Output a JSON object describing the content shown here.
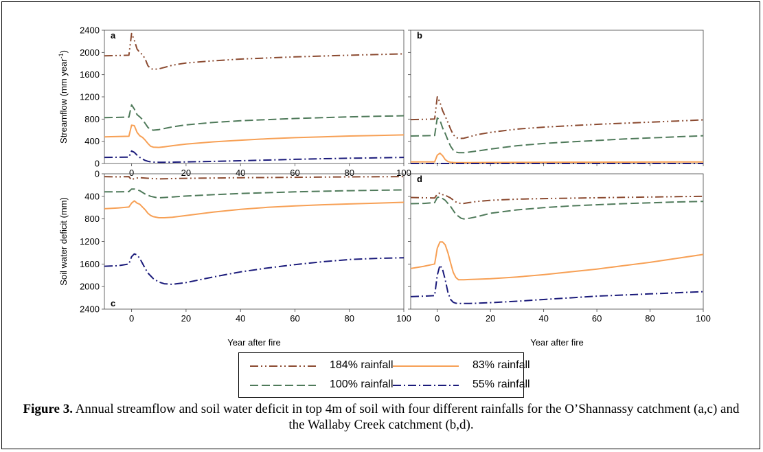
{
  "chart_data": [
    {
      "panel": "a",
      "type": "line",
      "ylabel": "Streamflow (mm year-1)",
      "ylabel_parts": [
        "Streamflow (mm year",
        "-1",
        ")"
      ],
      "xlim": [
        -10,
        100
      ],
      "ylim": [
        0,
        2400
      ],
      "y_inverted": false,
      "xticks": [
        0,
        20,
        40,
        60,
        80,
        100
      ],
      "yticks": [
        0,
        400,
        800,
        1200,
        1600,
        2000,
        2400
      ],
      "show_xtick_labels": true,
      "show_ytick_labels": true,
      "series": [
        {
          "name": "184% rainfall",
          "x": [
            -10,
            -5,
            -1,
            0,
            1,
            2,
            3,
            4,
            5,
            6,
            7,
            8,
            10,
            12,
            15,
            20,
            30,
            40,
            50,
            60,
            70,
            80,
            90,
            100
          ],
          "y": [
            1940,
            1945,
            1950,
            2340,
            2220,
            2060,
            2000,
            1960,
            1880,
            1760,
            1710,
            1695,
            1705,
            1730,
            1770,
            1810,
            1850,
            1880,
            1900,
            1920,
            1935,
            1950,
            1962,
            1975
          ]
        },
        {
          "name": "100% rainfall",
          "x": [
            -10,
            -5,
            -1,
            0,
            1,
            2,
            3,
            4,
            5,
            6,
            7,
            8,
            10,
            12,
            15,
            20,
            30,
            40,
            50,
            60,
            70,
            80,
            90,
            100
          ],
          "y": [
            825,
            830,
            835,
            1055,
            980,
            880,
            840,
            790,
            720,
            650,
            610,
            600,
            610,
            630,
            660,
            695,
            740,
            770,
            790,
            810,
            825,
            840,
            850,
            860
          ]
        },
        {
          "name": "83% rainfall",
          "x": [
            -10,
            -5,
            -1,
            0,
            1,
            2,
            3,
            4,
            5,
            6,
            7,
            8,
            10,
            12,
            15,
            20,
            30,
            40,
            50,
            60,
            70,
            80,
            90,
            100
          ],
          "y": [
            480,
            485,
            490,
            690,
            680,
            560,
            500,
            470,
            420,
            360,
            310,
            295,
            290,
            300,
            320,
            350,
            390,
            420,
            445,
            465,
            480,
            495,
            505,
            515
          ]
        },
        {
          "name": "55% rainfall",
          "x": [
            -10,
            -5,
            -1,
            0,
            1,
            2,
            3,
            4,
            5,
            6,
            7,
            8,
            10,
            12,
            15,
            20,
            30,
            40,
            50,
            60,
            70,
            80,
            90,
            100
          ],
          "y": [
            110,
            112,
            115,
            225,
            200,
            150,
            110,
            80,
            55,
            40,
            30,
            25,
            22,
            22,
            24,
            28,
            38,
            50,
            62,
            75,
            85,
            95,
            102,
            110
          ]
        }
      ]
    },
    {
      "panel": "b",
      "type": "line",
      "xlim": [
        -10,
        100
      ],
      "ylim": [
        0,
        2400
      ],
      "y_inverted": false,
      "xticks": [
        0,
        20,
        40,
        60,
        80,
        100
      ],
      "yticks": [
        0,
        400,
        800,
        1200,
        1600,
        2000,
        2400
      ],
      "show_xtick_labels": false,
      "show_ytick_labels": false,
      "series": [
        {
          "name": "184% rainfall",
          "x": [
            -10,
            -5,
            -1,
            0,
            1,
            2,
            3,
            4,
            5,
            6,
            7,
            8,
            10,
            12,
            15,
            20,
            30,
            40,
            50,
            60,
            70,
            80,
            90,
            100
          ],
          "y": [
            790,
            795,
            800,
            1200,
            1100,
            950,
            850,
            740,
            620,
            520,
            470,
            450,
            455,
            480,
            520,
            560,
            620,
            655,
            680,
            705,
            725,
            745,
            765,
            785
          ]
        },
        {
          "name": "100% rainfall",
          "x": [
            -10,
            -5,
            -1,
            0,
            1,
            2,
            3,
            4,
            5,
            6,
            7,
            8,
            10,
            12,
            15,
            20,
            30,
            40,
            50,
            60,
            70,
            80,
            90,
            100
          ],
          "y": [
            495,
            500,
            505,
            820,
            780,
            640,
            540,
            420,
            310,
            240,
            205,
            195,
            195,
            205,
            225,
            260,
            320,
            360,
            390,
            415,
            440,
            460,
            480,
            500
          ]
        },
        {
          "name": "83% rainfall",
          "x": [
            -10,
            -5,
            -1,
            0,
            1,
            2,
            3,
            4,
            5,
            6,
            7,
            8,
            10,
            12,
            15,
            20,
            30,
            40,
            50,
            60,
            70,
            80,
            90,
            100
          ],
          "y": [
            30,
            30,
            30,
            150,
            185,
            140,
            70,
            35,
            22,
            18,
            16,
            15,
            15,
            16,
            17,
            18,
            20,
            22,
            23,
            24,
            25,
            26,
            27,
            28
          ]
        },
        {
          "name": "55% rainfall",
          "x": [
            -10,
            100
          ],
          "y": [
            0,
            0
          ]
        }
      ]
    },
    {
      "panel": "c",
      "type": "line",
      "ylabel": "Soil water deficit (mm)",
      "xlabel": "Year after fire",
      "xlim": [
        -10,
        100
      ],
      "ylim": [
        0,
        2400
      ],
      "y_inverted": true,
      "xticks": [
        0,
        20,
        40,
        60,
        80,
        100
      ],
      "yticks": [
        0,
        400,
        800,
        1200,
        1600,
        2000,
        2400
      ],
      "show_xtick_labels": true,
      "show_ytick_labels": true,
      "series": [
        {
          "name": "184% rainfall",
          "x": [
            -10,
            -5,
            -1,
            0,
            1,
            3,
            5,
            8,
            10,
            15,
            20,
            40,
            60,
            80,
            100
          ],
          "y": [
            50,
            55,
            50,
            110,
            80,
            70,
            75,
            85,
            90,
            85,
            80,
            70,
            62,
            55,
            50
          ]
        },
        {
          "name": "100% rainfall",
          "x": [
            -10,
            -5,
            -1,
            0,
            1,
            3,
            5,
            7,
            9,
            10,
            12,
            15,
            20,
            30,
            40,
            60,
            80,
            100
          ],
          "y": [
            320,
            320,
            315,
            270,
            270,
            300,
            360,
            400,
            420,
            425,
            420,
            410,
            395,
            370,
            350,
            320,
            300,
            285
          ]
        },
        {
          "name": "83% rainfall",
          "x": [
            -10,
            -5,
            -1,
            0,
            1,
            2,
            3,
            4,
            5,
            6,
            7,
            8,
            10,
            12,
            15,
            20,
            30,
            40,
            50,
            60,
            70,
            80,
            90,
            100
          ],
          "y": [
            620,
            605,
            590,
            520,
            480,
            520,
            540,
            590,
            640,
            700,
            740,
            760,
            780,
            780,
            770,
            740,
            680,
            630,
            595,
            570,
            550,
            535,
            520,
            505
          ]
        },
        {
          "name": "55% rainfall",
          "x": [
            -10,
            -5,
            -1,
            0,
            1,
            2,
            3,
            4,
            5,
            6,
            8,
            10,
            12,
            15,
            20,
            30,
            40,
            50,
            60,
            70,
            80,
            90,
            100
          ],
          "y": [
            1640,
            1630,
            1600,
            1470,
            1420,
            1440,
            1500,
            1590,
            1680,
            1760,
            1860,
            1920,
            1950,
            1960,
            1930,
            1830,
            1740,
            1670,
            1610,
            1560,
            1520,
            1500,
            1490
          ]
        }
      ]
    },
    {
      "panel": "d",
      "type": "line",
      "xlabel": "Year after fire",
      "xlim": [
        -10,
        100
      ],
      "ylim": [
        0,
        2400
      ],
      "y_inverted": true,
      "xticks": [
        0,
        20,
        40,
        60,
        80,
        100
      ],
      "yticks": [
        0,
        400,
        800,
        1200,
        1600,
        2000,
        2400
      ],
      "show_xtick_labels": true,
      "show_ytick_labels": false,
      "series": [
        {
          "name": "184% rainfall",
          "x": [
            -10,
            -5,
            -1,
            0,
            1,
            2,
            3,
            5,
            7,
            9,
            10,
            12,
            15,
            20,
            30,
            40,
            50,
            60,
            70,
            80,
            90,
            100
          ],
          "y": [
            420,
            425,
            430,
            360,
            340,
            370,
            380,
            430,
            500,
            530,
            525,
            510,
            490,
            470,
            450,
            440,
            432,
            425,
            418,
            412,
            406,
            400
          ]
        },
        {
          "name": "100% rainfall",
          "x": [
            -10,
            -5,
            -1,
            0,
            1,
            2,
            3,
            5,
            7,
            9,
            10,
            12,
            15,
            20,
            30,
            40,
            50,
            60,
            70,
            80,
            90,
            100
          ],
          "y": [
            530,
            525,
            510,
            420,
            410,
            440,
            470,
            580,
            720,
            790,
            800,
            790,
            760,
            700,
            640,
            600,
            570,
            550,
            530,
            515,
            500,
            490
          ]
        },
        {
          "name": "83% rainfall",
          "x": [
            -10,
            -5,
            -1,
            0,
            1,
            2,
            3,
            4,
            5,
            6,
            7,
            8,
            10,
            12,
            15,
            20,
            30,
            40,
            50,
            60,
            70,
            80,
            90,
            100
          ],
          "y": [
            1680,
            1640,
            1600,
            1320,
            1210,
            1210,
            1260,
            1400,
            1580,
            1750,
            1840,
            1880,
            1880,
            1875,
            1870,
            1860,
            1830,
            1790,
            1740,
            1690,
            1630,
            1570,
            1500,
            1430
          ]
        },
        {
          "name": "55% rainfall",
          "x": [
            -10,
            -5,
            -1,
            0,
            1,
            2,
            3,
            4,
            5,
            6,
            7,
            8,
            10,
            12,
            15,
            20,
            30,
            40,
            50,
            60,
            70,
            80,
            90,
            100
          ],
          "y": [
            2180,
            2170,
            2160,
            1800,
            1620,
            1700,
            1880,
            2100,
            2230,
            2280,
            2295,
            2300,
            2300,
            2300,
            2295,
            2285,
            2260,
            2230,
            2200,
            2170,
            2150,
            2130,
            2110,
            2090
          ]
        }
      ]
    }
  ],
  "styles": {
    "184% rainfall": {
      "color": "#8B4A30",
      "dash": "12,4,2,4,2,4"
    },
    "100% rainfall": {
      "color": "#4F7A5A",
      "dash": "12,5"
    },
    "83% rainfall": {
      "color": "#F7A055",
      "dash": ""
    },
    "55% rainfall": {
      "color": "#1A1A7A",
      "dash": "12,4,2,4"
    }
  },
  "legend": {
    "items": [
      {
        "label": "184% rainfall"
      },
      {
        "label": "83% rainfall"
      },
      {
        "label": "100% rainfall"
      },
      {
        "label": "55% rainfall"
      }
    ]
  },
  "caption": {
    "label": "Figure 3.",
    "text": " Annual streamflow and soil water deficit in top 4m of soil with four different rainfalls for the O’Shannassy catchment (a,c) and the Wallaby Creek catchment (b,d)."
  }
}
